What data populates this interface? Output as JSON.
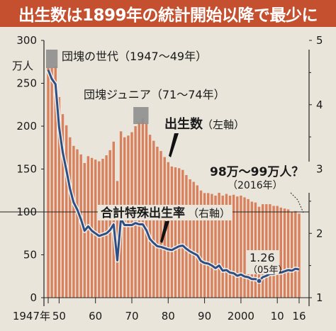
{
  "title": "出生数は1899年の統計開始以降で最少に",
  "chart_data": {
    "type": "bar",
    "series": [
      {
        "name": "出生数（左軸）",
        "axis": "left",
        "kind": "bar",
        "color": "#d9805c",
        "x": [
          1947,
          1948,
          1949,
          1950,
          1951,
          1952,
          1953,
          1954,
          1955,
          1956,
          1957,
          1958,
          1959,
          1960,
          1961,
          1962,
          1963,
          1964,
          1965,
          1966,
          1967,
          1968,
          1969,
          1970,
          1971,
          1972,
          1973,
          1974,
          1975,
          1976,
          1977,
          1978,
          1979,
          1980,
          1981,
          1982,
          1983,
          1984,
          1985,
          1986,
          1987,
          1988,
          1989,
          1990,
          1991,
          1992,
          1993,
          1994,
          1995,
          1996,
          1997,
          1998,
          1999,
          2000,
          2001,
          2002,
          2003,
          2004,
          2005,
          2006,
          2007,
          2008,
          2009,
          2010,
          2011,
          2012,
          2013,
          2014,
          2015,
          2016
        ],
        "values": [
          268,
          268,
          270,
          234,
          214,
          201,
          187,
          177,
          173,
          167,
          157,
          165,
          163,
          161,
          159,
          162,
          166,
          172,
          182,
          136,
          194,
          187,
          189,
          193,
          200,
          204,
          209,
          203,
          190,
          183,
          176,
          171,
          164,
          158,
          153,
          152,
          151,
          149,
          143,
          138,
          135,
          131,
          125,
          122,
          122,
          121,
          119,
          124,
          119,
          121,
          119,
          120,
          118,
          119,
          117,
          115,
          112,
          111,
          106,
          109,
          109,
          109,
          107,
          107,
          105,
          104,
          103,
          100,
          101,
          98
        ]
      },
      {
        "name": "合計特殊出生率（右軸）",
        "axis": "right",
        "kind": "line",
        "color": "#2e4f86",
        "x": [
          1947,
          1948,
          1949,
          1950,
          1951,
          1952,
          1953,
          1954,
          1955,
          1956,
          1957,
          1958,
          1959,
          1960,
          1961,
          1962,
          1963,
          1964,
          1965,
          1966,
          1967,
          1968,
          1969,
          1970,
          1971,
          1972,
          1973,
          1974,
          1975,
          1976,
          1977,
          1978,
          1979,
          1980,
          1981,
          1982,
          1983,
          1984,
          1985,
          1986,
          1987,
          1988,
          1989,
          1990,
          1991,
          1992,
          1993,
          1994,
          1995,
          1996,
          1997,
          1998,
          1999,
          2000,
          2001,
          2002,
          2003,
          2004,
          2005,
          2006,
          2007,
          2008,
          2009,
          2010,
          2011,
          2012,
          2013,
          2014,
          2015,
          2016
        ],
        "values": [
          4.54,
          4.4,
          4.32,
          3.65,
          3.26,
          2.98,
          2.69,
          2.48,
          2.37,
          2.22,
          2.04,
          2.11,
          2.04,
          2.0,
          1.96,
          1.98,
          2.0,
          2.05,
          2.14,
          1.58,
          2.23,
          2.13,
          2.13,
          2.13,
          2.16,
          2.14,
          2.14,
          2.05,
          1.91,
          1.85,
          1.8,
          1.79,
          1.77,
          1.75,
          1.74,
          1.77,
          1.8,
          1.81,
          1.76,
          1.72,
          1.69,
          1.66,
          1.57,
          1.54,
          1.53,
          1.5,
          1.46,
          1.5,
          1.42,
          1.43,
          1.39,
          1.38,
          1.34,
          1.36,
          1.33,
          1.32,
          1.29,
          1.29,
          1.26,
          1.32,
          1.34,
          1.37,
          1.37,
          1.39,
          1.39,
          1.41,
          1.43,
          1.42,
          1.45,
          1.44
        ]
      }
    ],
    "left_axis": {
      "unit": "万人",
      "ticks": [
        "0",
        "50",
        "100",
        "150",
        "200",
        "250",
        "300"
      ],
      "ylim": [
        0,
        300
      ]
    },
    "right_axis": {
      "ticks": [
        "1",
        "2",
        "3",
        "4",
        "5"
      ],
      "ylim": [
        1,
        5
      ]
    },
    "x_ticks": [
      "1947年",
      "50",
      "60",
      "70",
      "80",
      "90",
      "2000",
      "10",
      "16"
    ],
    "reference_line": {
      "value": 100,
      "axis": "left"
    },
    "annotations": {
      "boom1": "団塊の世代（1947〜49年）",
      "boom2": "団塊ジュニア（71〜74年）",
      "births_label": "出生数",
      "births_axis_note": "（左軸）",
      "tfr_label": "合計特殊出生率",
      "tfr_axis_note": "（右軸）",
      "estimate": "98万〜99万人？",
      "estimate_year": "（2016年）",
      "min_value": "1.26",
      "min_year": "（05年）"
    },
    "colors": {
      "title_bg": "#c5502f",
      "background": "#e9e5db",
      "bar": "#d9805c",
      "line": "#2e4f86",
      "highlight": "#8e8e8e"
    }
  }
}
